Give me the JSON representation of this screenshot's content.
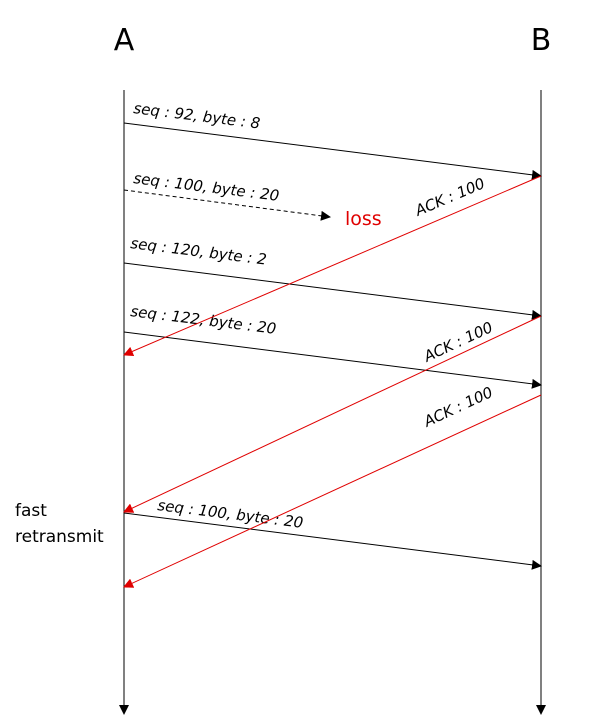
{
  "nodes": [
    {
      "label": "A"
    },
    {
      "label": "B"
    }
  ],
  "messages": [
    {
      "label": "seq : 92, byte : 8"
    },
    {
      "label": "seq : 100, byte : 20"
    },
    {
      "label": "seq : 120, byte : 2"
    },
    {
      "label": "seq : 122, byte : 20"
    },
    {
      "label": "seq : 100, byte : 20"
    }
  ],
  "acks": [
    {
      "label": "ACK : 100"
    },
    {
      "label": "ACK : 100"
    },
    {
      "label": "ACK : 100"
    }
  ],
  "loss_label": "loss",
  "note": [
    "fast",
    "retransmit"
  ]
}
